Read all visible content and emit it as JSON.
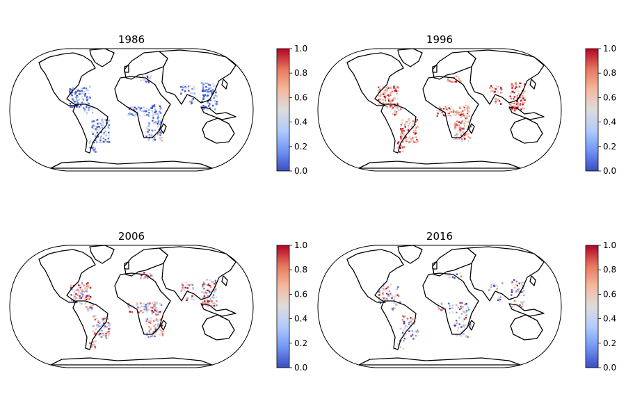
{
  "figure": {
    "colormap": "coolwarm",
    "colormap_stops": [
      "#3b4cc0",
      "#7396f5",
      "#b0cbfc",
      "#dddcdc",
      "#f5b89c",
      "#e8785f",
      "#b40426"
    ],
    "projection": "Robinson",
    "land_outline_color": "#000000"
  },
  "panels": [
    {
      "title": "1986",
      "colorbar": {
        "ticks": [
          "0.0",
          "0.2",
          "0.4",
          "0.6",
          "0.8",
          "1.0"
        ],
        "range": [
          0,
          1
        ]
      },
      "dominant": "low"
    },
    {
      "title": "1996",
      "colorbar": {
        "ticks": [
          "0.0",
          "0.2",
          "0.4",
          "0.6",
          "0.8",
          "1.0"
        ],
        "range": [
          0,
          1
        ]
      },
      "dominant": "high"
    },
    {
      "title": "2006",
      "colorbar": {
        "ticks": [
          "0.0",
          "0.2",
          "0.4",
          "0.6",
          "0.8",
          "1.0"
        ],
        "range": [
          0,
          1
        ]
      },
      "dominant": "mixed"
    },
    {
      "title": "2016",
      "colorbar": {
        "ticks": [
          "0.0",
          "0.2",
          "0.4",
          "0.6",
          "0.8",
          "1.0"
        ],
        "range": [
          0,
          1
        ]
      },
      "dominant": "sparse"
    }
  ]
}
